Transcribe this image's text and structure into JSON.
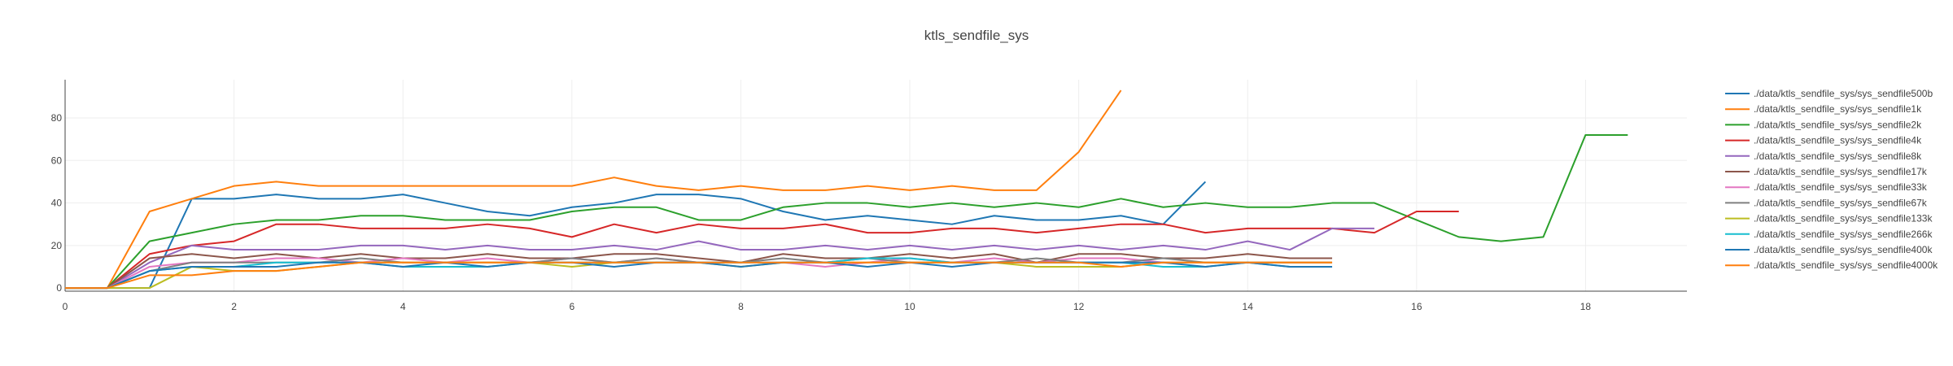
{
  "chart_data": {
    "type": "line",
    "title": "ktls_sendfile_sys",
    "xlabel": "",
    "ylabel": "",
    "xlim": [
      0,
      19.2
    ],
    "ylim": [
      -1.5,
      98
    ],
    "xticks": [
      0,
      2,
      4,
      6,
      8,
      10,
      12,
      14,
      16,
      18
    ],
    "yticks": [
      0,
      20,
      40,
      60,
      80
    ],
    "grid": true,
    "legend_position": "right",
    "series": [
      {
        "name": "./data/ktls_sendfile_sys/sys_sendfile500b",
        "color": "#1f77b4",
        "x": [
          0,
          0.5,
          1,
          1.5,
          2,
          2.5,
          3,
          3.5,
          4,
          4.5,
          5,
          5.5,
          6,
          6.5,
          7,
          7.5,
          8,
          8.5,
          9,
          9.5,
          10,
          10.5,
          11,
          11.5,
          12,
          12.5,
          13,
          13.5
        ],
        "y": [
          0,
          0,
          0,
          42,
          42,
          44,
          42,
          42,
          44,
          40,
          36,
          34,
          38,
          40,
          44,
          44,
          42,
          36,
          32,
          34,
          32,
          30,
          34,
          32,
          32,
          34,
          30,
          50
        ]
      },
      {
        "name": "./data/ktls_sendfile_sys/sys_sendfile1k",
        "color": "#ff7f0e",
        "x": [
          0,
          0.5,
          1,
          1.5,
          2,
          2.5,
          3,
          3.5,
          4,
          4.5,
          5,
          5.5,
          6,
          6.5,
          7,
          7.5,
          8,
          8.5,
          9,
          9.5,
          10,
          10.5,
          11,
          11.5,
          12,
          12.5
        ],
        "y": [
          0,
          0,
          36,
          42,
          48,
          50,
          48,
          48,
          48,
          48,
          48,
          48,
          48,
          52,
          48,
          46,
          48,
          46,
          46,
          48,
          46,
          48,
          46,
          46,
          64,
          93
        ]
      },
      {
        "name": "./data/ktls_sendfile_sys/sys_sendfile2k",
        "color": "#2ca02c",
        "x": [
          0,
          0.5,
          1,
          1.5,
          2,
          2.5,
          3,
          3.5,
          4,
          4.5,
          5,
          5.5,
          6,
          6.5,
          7,
          7.5,
          8,
          8.5,
          9,
          9.5,
          10,
          10.5,
          11,
          11.5,
          12,
          12.5,
          13,
          13.5,
          14,
          14.5,
          15,
          15.5,
          16,
          16.5,
          17,
          17.5,
          18,
          18.5
        ],
        "y": [
          0,
          0,
          22,
          26,
          30,
          32,
          32,
          34,
          34,
          32,
          32,
          32,
          36,
          38,
          38,
          32,
          32,
          38,
          40,
          40,
          38,
          40,
          38,
          40,
          38,
          42,
          38,
          40,
          38,
          38,
          40,
          40,
          32,
          24,
          22,
          24,
          72,
          72
        ]
      },
      {
        "name": "./data/ktls_sendfile_sys/sys_sendfile4k",
        "color": "#d62728",
        "x": [
          0,
          0.5,
          1,
          1.5,
          2,
          2.5,
          3,
          3.5,
          4,
          4.5,
          5,
          5.5,
          6,
          6.5,
          7,
          7.5,
          8,
          8.5,
          9,
          9.5,
          10,
          10.5,
          11,
          11.5,
          12,
          12.5,
          13,
          13.5,
          14,
          14.5,
          15,
          15.5,
          16,
          16.5
        ],
        "y": [
          0,
          0,
          16,
          20,
          22,
          30,
          30,
          28,
          28,
          28,
          30,
          28,
          24,
          30,
          26,
          30,
          28,
          28,
          30,
          26,
          26,
          28,
          28,
          26,
          28,
          30,
          30,
          26,
          28,
          28,
          28,
          26,
          36,
          36
        ]
      },
      {
        "name": "./data/ktls_sendfile_sys/sys_sendfile8k",
        "color": "#9467bd",
        "x": [
          0,
          0.5,
          1,
          1.5,
          2,
          2.5,
          3,
          3.5,
          4,
          4.5,
          5,
          5.5,
          6,
          6.5,
          7,
          7.5,
          8,
          8.5,
          9,
          9.5,
          10,
          10.5,
          11,
          11.5,
          12,
          12.5,
          13,
          13.5,
          14,
          14.5,
          15,
          15.5
        ],
        "y": [
          0,
          0,
          12,
          20,
          18,
          18,
          18,
          20,
          20,
          18,
          20,
          18,
          18,
          20,
          18,
          22,
          18,
          18,
          20,
          18,
          20,
          18,
          20,
          18,
          20,
          18,
          20,
          18,
          22,
          18,
          28,
          28
        ]
      },
      {
        "name": "./data/ktls_sendfile_sys/sys_sendfile17k",
        "color": "#8c564b",
        "x": [
          0,
          0.5,
          1,
          1.5,
          2,
          2.5,
          3,
          3.5,
          4,
          4.5,
          5,
          5.5,
          6,
          6.5,
          7,
          7.5,
          8,
          8.5,
          9,
          9.5,
          10,
          10.5,
          11,
          11.5,
          12,
          12.5,
          13,
          13.5,
          14,
          14.5,
          15
        ],
        "y": [
          0,
          0,
          14,
          16,
          14,
          16,
          14,
          16,
          14,
          14,
          16,
          14,
          14,
          16,
          16,
          14,
          12,
          16,
          14,
          14,
          16,
          14,
          16,
          12,
          16,
          16,
          14,
          14,
          16,
          14,
          14
        ]
      },
      {
        "name": "./data/ktls_sendfile_sys/sys_sendfile33k",
        "color": "#e377c2",
        "x": [
          0,
          0.5,
          1,
          1.5,
          2,
          2.5,
          3,
          3.5,
          4,
          4.5,
          5,
          5.5,
          6,
          6.5,
          7,
          7.5,
          8,
          8.5,
          9,
          9.5,
          10,
          10.5,
          11,
          11.5,
          12,
          12.5,
          13,
          13.5,
          14,
          14.5,
          15
        ],
        "y": [
          0,
          0,
          10,
          12,
          12,
          14,
          14,
          12,
          14,
          12,
          14,
          12,
          14,
          12,
          14,
          12,
          12,
          12,
          10,
          12,
          14,
          12,
          14,
          12,
          14,
          14,
          12,
          12,
          12,
          12,
          12
        ]
      },
      {
        "name": "./data/ktls_sendfile_sys/sys_sendfile67k",
        "color": "#7f7f7f",
        "x": [
          0,
          0.5,
          1,
          1.5,
          2,
          2.5,
          3,
          3.5,
          4,
          4.5,
          5,
          5.5,
          6,
          6.5,
          7,
          7.5,
          8,
          8.5,
          9,
          9.5,
          10,
          10.5,
          11,
          11.5,
          12,
          12.5,
          13,
          13.5,
          14,
          14.5,
          15
        ],
        "y": [
          0,
          0,
          8,
          12,
          12,
          12,
          12,
          14,
          12,
          12,
          12,
          12,
          14,
          12,
          14,
          12,
          12,
          14,
          12,
          14,
          12,
          12,
          12,
          14,
          12,
          12,
          14,
          12,
          12,
          12,
          12
        ]
      },
      {
        "name": "./data/ktls_sendfile_sys/sys_sendfile133k",
        "color": "#bcbd22",
        "x": [
          0,
          0.5,
          1,
          1.5,
          2,
          2.5,
          3,
          3.5,
          4,
          4.5,
          5,
          5.5,
          6,
          6.5,
          7,
          7.5,
          8,
          8.5,
          9,
          9.5,
          10,
          10.5,
          11,
          11.5,
          12,
          12.5,
          13,
          13.5,
          14,
          14.5,
          15
        ],
        "y": [
          0,
          0,
          0,
          10,
          8,
          8,
          10,
          12,
          12,
          12,
          12,
          12,
          10,
          12,
          12,
          12,
          10,
          12,
          12,
          12,
          12,
          12,
          12,
          10,
          10,
          10,
          12,
          12,
          12,
          12,
          12
        ]
      },
      {
        "name": "./data/ktls_sendfile_sys/sys_sendfile266k",
        "color": "#17becf",
        "x": [
          0,
          0.5,
          1,
          1.5,
          2,
          2.5,
          3,
          3.5,
          4,
          4.5,
          5,
          5.5,
          6,
          6.5,
          7,
          7.5,
          8,
          8.5,
          9,
          9.5,
          10,
          10.5,
          11,
          11.5,
          12,
          12.5,
          13,
          13.5,
          14,
          14.5,
          15
        ],
        "y": [
          0,
          0,
          8,
          10,
          10,
          12,
          12,
          12,
          10,
          10,
          10,
          12,
          12,
          12,
          12,
          12,
          12,
          12,
          12,
          14,
          14,
          12,
          12,
          12,
          12,
          12,
          10,
          10,
          12,
          10,
          10
        ]
      },
      {
        "name": "./data/ktls_sendfile_sys/sys_sendfile400k",
        "color": "#1f77b4",
        "x": [
          0,
          0.5,
          1,
          1.5,
          2,
          2.5,
          3,
          3.5,
          4,
          4.5,
          5,
          5.5,
          6,
          6.5,
          7,
          7.5,
          8,
          8.5,
          9,
          9.5,
          10,
          10.5,
          11,
          11.5,
          12,
          12.5,
          13,
          13.5,
          14,
          14.5,
          15
        ],
        "y": [
          0,
          0,
          8,
          10,
          10,
          10,
          12,
          12,
          10,
          12,
          10,
          12,
          12,
          10,
          12,
          12,
          10,
          12,
          12,
          10,
          12,
          10,
          12,
          12,
          12,
          12,
          12,
          10,
          12,
          10,
          10
        ]
      },
      {
        "name": "./data/ktls_sendfile_sys/sys_sendfile4000k",
        "color": "#ff7f0e",
        "x": [
          0,
          0.5,
          1,
          1.5,
          2,
          2.5,
          3,
          3.5,
          4,
          4.5,
          5,
          5.5,
          6,
          6.5,
          7,
          7.5,
          8,
          8.5,
          9,
          9.5,
          10,
          10.5,
          11,
          11.5,
          12,
          12.5,
          13,
          13.5,
          14,
          14.5,
          15
        ],
        "y": [
          0,
          0,
          6,
          6,
          8,
          8,
          10,
          12,
          12,
          12,
          12,
          12,
          12,
          12,
          12,
          12,
          12,
          12,
          12,
          12,
          12,
          12,
          12,
          12,
          12,
          10,
          12,
          12,
          12,
          12,
          12
        ]
      }
    ]
  }
}
